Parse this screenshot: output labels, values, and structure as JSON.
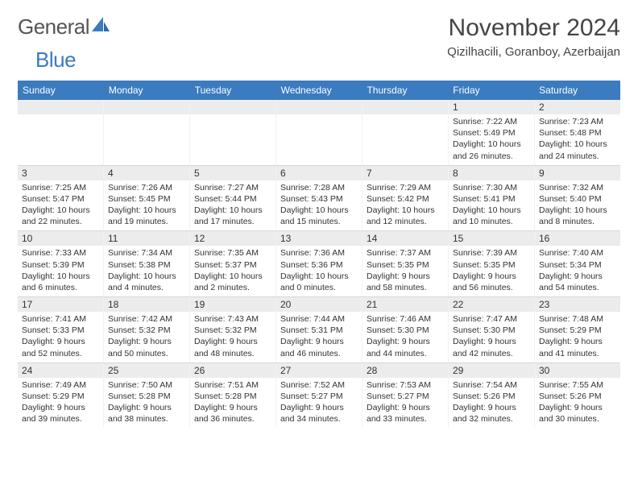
{
  "logo": {
    "text1": "General",
    "text2": "Blue"
  },
  "title": "November 2024",
  "location": "Qizilhacili, Goranboy, Azerbaijan",
  "colors": {
    "header_bar": "#3b7bbf",
    "daynum_bg": "#ececec",
    "text": "#333333",
    "title_text": "#444444",
    "logo_gray": "#555555",
    "logo_blue": "#3b7bbf",
    "cell_border": "#f2f2f2",
    "row_border": "#d8d8d8",
    "background": "#ffffff"
  },
  "day_headers": [
    "Sunday",
    "Monday",
    "Tuesday",
    "Wednesday",
    "Thursday",
    "Friday",
    "Saturday"
  ],
  "weeks": [
    [
      null,
      null,
      null,
      null,
      null,
      {
        "day": "1",
        "sunrise": "Sunrise: 7:22 AM",
        "sunset": "Sunset: 5:49 PM",
        "daylight": "Daylight: 10 hours and 26 minutes."
      },
      {
        "day": "2",
        "sunrise": "Sunrise: 7:23 AM",
        "sunset": "Sunset: 5:48 PM",
        "daylight": "Daylight: 10 hours and 24 minutes."
      }
    ],
    [
      {
        "day": "3",
        "sunrise": "Sunrise: 7:25 AM",
        "sunset": "Sunset: 5:47 PM",
        "daylight": "Daylight: 10 hours and 22 minutes."
      },
      {
        "day": "4",
        "sunrise": "Sunrise: 7:26 AM",
        "sunset": "Sunset: 5:45 PM",
        "daylight": "Daylight: 10 hours and 19 minutes."
      },
      {
        "day": "5",
        "sunrise": "Sunrise: 7:27 AM",
        "sunset": "Sunset: 5:44 PM",
        "daylight": "Daylight: 10 hours and 17 minutes."
      },
      {
        "day": "6",
        "sunrise": "Sunrise: 7:28 AM",
        "sunset": "Sunset: 5:43 PM",
        "daylight": "Daylight: 10 hours and 15 minutes."
      },
      {
        "day": "7",
        "sunrise": "Sunrise: 7:29 AM",
        "sunset": "Sunset: 5:42 PM",
        "daylight": "Daylight: 10 hours and 12 minutes."
      },
      {
        "day": "8",
        "sunrise": "Sunrise: 7:30 AM",
        "sunset": "Sunset: 5:41 PM",
        "daylight": "Daylight: 10 hours and 10 minutes."
      },
      {
        "day": "9",
        "sunrise": "Sunrise: 7:32 AM",
        "sunset": "Sunset: 5:40 PM",
        "daylight": "Daylight: 10 hours and 8 minutes."
      }
    ],
    [
      {
        "day": "10",
        "sunrise": "Sunrise: 7:33 AM",
        "sunset": "Sunset: 5:39 PM",
        "daylight": "Daylight: 10 hours and 6 minutes."
      },
      {
        "day": "11",
        "sunrise": "Sunrise: 7:34 AM",
        "sunset": "Sunset: 5:38 PM",
        "daylight": "Daylight: 10 hours and 4 minutes."
      },
      {
        "day": "12",
        "sunrise": "Sunrise: 7:35 AM",
        "sunset": "Sunset: 5:37 PM",
        "daylight": "Daylight: 10 hours and 2 minutes."
      },
      {
        "day": "13",
        "sunrise": "Sunrise: 7:36 AM",
        "sunset": "Sunset: 5:36 PM",
        "daylight": "Daylight: 10 hours and 0 minutes."
      },
      {
        "day": "14",
        "sunrise": "Sunrise: 7:37 AM",
        "sunset": "Sunset: 5:35 PM",
        "daylight": "Daylight: 9 hours and 58 minutes."
      },
      {
        "day": "15",
        "sunrise": "Sunrise: 7:39 AM",
        "sunset": "Sunset: 5:35 PM",
        "daylight": "Daylight: 9 hours and 56 minutes."
      },
      {
        "day": "16",
        "sunrise": "Sunrise: 7:40 AM",
        "sunset": "Sunset: 5:34 PM",
        "daylight": "Daylight: 9 hours and 54 minutes."
      }
    ],
    [
      {
        "day": "17",
        "sunrise": "Sunrise: 7:41 AM",
        "sunset": "Sunset: 5:33 PM",
        "daylight": "Daylight: 9 hours and 52 minutes."
      },
      {
        "day": "18",
        "sunrise": "Sunrise: 7:42 AM",
        "sunset": "Sunset: 5:32 PM",
        "daylight": "Daylight: 9 hours and 50 minutes."
      },
      {
        "day": "19",
        "sunrise": "Sunrise: 7:43 AM",
        "sunset": "Sunset: 5:32 PM",
        "daylight": "Daylight: 9 hours and 48 minutes."
      },
      {
        "day": "20",
        "sunrise": "Sunrise: 7:44 AM",
        "sunset": "Sunset: 5:31 PM",
        "daylight": "Daylight: 9 hours and 46 minutes."
      },
      {
        "day": "21",
        "sunrise": "Sunrise: 7:46 AM",
        "sunset": "Sunset: 5:30 PM",
        "daylight": "Daylight: 9 hours and 44 minutes."
      },
      {
        "day": "22",
        "sunrise": "Sunrise: 7:47 AM",
        "sunset": "Sunset: 5:30 PM",
        "daylight": "Daylight: 9 hours and 42 minutes."
      },
      {
        "day": "23",
        "sunrise": "Sunrise: 7:48 AM",
        "sunset": "Sunset: 5:29 PM",
        "daylight": "Daylight: 9 hours and 41 minutes."
      }
    ],
    [
      {
        "day": "24",
        "sunrise": "Sunrise: 7:49 AM",
        "sunset": "Sunset: 5:29 PM",
        "daylight": "Daylight: 9 hours and 39 minutes."
      },
      {
        "day": "25",
        "sunrise": "Sunrise: 7:50 AM",
        "sunset": "Sunset: 5:28 PM",
        "daylight": "Daylight: 9 hours and 38 minutes."
      },
      {
        "day": "26",
        "sunrise": "Sunrise: 7:51 AM",
        "sunset": "Sunset: 5:28 PM",
        "daylight": "Daylight: 9 hours and 36 minutes."
      },
      {
        "day": "27",
        "sunrise": "Sunrise: 7:52 AM",
        "sunset": "Sunset: 5:27 PM",
        "daylight": "Daylight: 9 hours and 34 minutes."
      },
      {
        "day": "28",
        "sunrise": "Sunrise: 7:53 AM",
        "sunset": "Sunset: 5:27 PM",
        "daylight": "Daylight: 9 hours and 33 minutes."
      },
      {
        "day": "29",
        "sunrise": "Sunrise: 7:54 AM",
        "sunset": "Sunset: 5:26 PM",
        "daylight": "Daylight: 9 hours and 32 minutes."
      },
      {
        "day": "30",
        "sunrise": "Sunrise: 7:55 AM",
        "sunset": "Sunset: 5:26 PM",
        "daylight": "Daylight: 9 hours and 30 minutes."
      }
    ]
  ]
}
